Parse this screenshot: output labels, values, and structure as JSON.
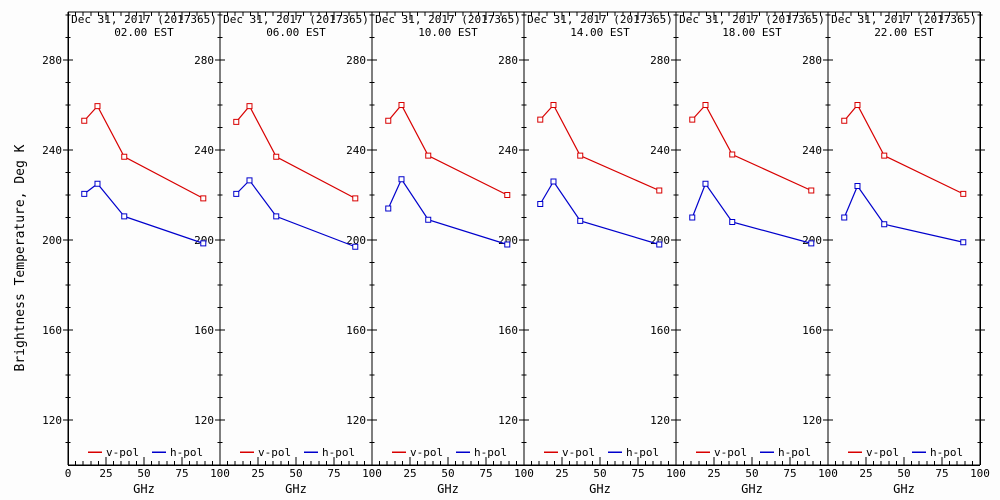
{
  "figure": {
    "ylabel": "Brightness Temperature, Deg K",
    "xlabel": "GHz"
  },
  "chart_data": {
    "type": "line",
    "title": "",
    "xlabel": "GHz",
    "ylabel": "Brightness Temperature, Deg K",
    "x": [
      10.7,
      19.4,
      37,
      89
    ],
    "xlim": [
      0,
      100
    ],
    "ylim": [
      100,
      301
    ],
    "x_ticks_major": [
      0,
      25,
      50,
      75,
      100
    ],
    "x_minor_step": 5,
    "y_ticks_major": [
      120,
      160,
      200,
      240,
      280
    ],
    "y_minor_step": 10,
    "grid": false,
    "legend_position": "bottom-inside-each-panel",
    "legend": [
      {
        "label": "v-pol",
        "color": "#d80000"
      },
      {
        "label": "h-pol",
        "color": "#0000cc"
      }
    ],
    "colors": {
      "vpol": "#d80000",
      "hpol": "#0000cc",
      "axis": "#000000"
    },
    "panels": [
      {
        "title": "Dec 31, 2017 (2017365)",
        "subtitle": "02.00 EST",
        "series": [
          {
            "name": "v-pol",
            "color": "#d80000",
            "values": [
              253,
              259.5,
              237,
              218.5
            ]
          },
          {
            "name": "h-pol",
            "color": "#0000cc",
            "values": [
              220.5,
              225,
              210.5,
              198.5
            ]
          }
        ]
      },
      {
        "title": "Dec 31, 2017 (2017365)",
        "subtitle": "06.00 EST",
        "series": [
          {
            "name": "v-pol",
            "color": "#d80000",
            "values": [
              252.5,
              259.5,
              237,
              218.5
            ]
          },
          {
            "name": "h-pol",
            "color": "#0000cc",
            "values": [
              220.5,
              226.5,
              210.5,
              197
            ]
          }
        ]
      },
      {
        "title": "Dec 31, 2017 (2017365)",
        "subtitle": "10.00 EST",
        "series": [
          {
            "name": "v-pol",
            "color": "#d80000",
            "values": [
              253,
              260,
              237.5,
              220
            ]
          },
          {
            "name": "h-pol",
            "color": "#0000cc",
            "values": [
              214,
              227,
              209,
              198
            ]
          }
        ]
      },
      {
        "title": "Dec 31, 2017 (2017365)",
        "subtitle": "14.00 EST",
        "series": [
          {
            "name": "v-pol",
            "color": "#d80000",
            "values": [
              253.5,
              260,
              237.5,
              222
            ]
          },
          {
            "name": "h-pol",
            "color": "#0000cc",
            "values": [
              216,
              226,
              208.5,
              198
            ]
          }
        ]
      },
      {
        "title": "Dec 31, 2017 (2017365)",
        "subtitle": "18.00 EST",
        "series": [
          {
            "name": "v-pol",
            "color": "#d80000",
            "values": [
              253.5,
              260,
              238,
              222
            ]
          },
          {
            "name": "h-pol",
            "color": "#0000cc",
            "values": [
              210,
              225,
              208,
              198.5
            ]
          }
        ]
      },
      {
        "title": "Dec 31, 2017 (2017365)",
        "subtitle": "22.00 EST",
        "series": [
          {
            "name": "v-pol",
            "color": "#d80000",
            "values": [
              253,
              260,
              237.5,
              220.5
            ]
          },
          {
            "name": "h-pol",
            "color": "#0000cc",
            "values": [
              210,
              224,
              207,
              199
            ]
          }
        ]
      }
    ]
  }
}
